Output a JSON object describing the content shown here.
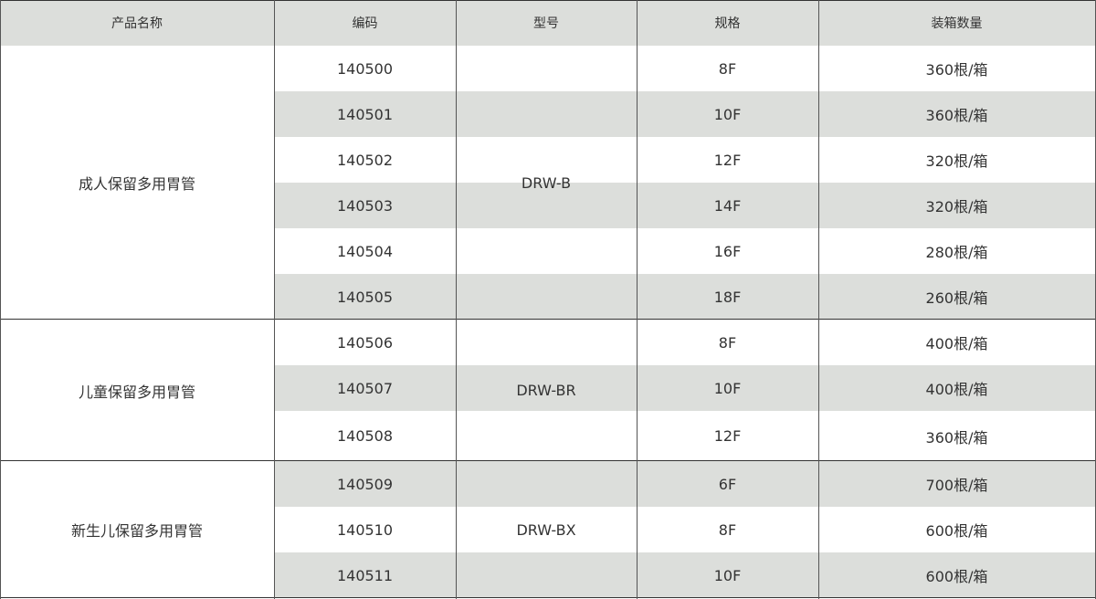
{
  "header": [
    "产品名称",
    "编码",
    "型号",
    "规格",
    "装箱数量"
  ],
  "groups": [
    {
      "product": "成人保留多用胃管",
      "model": "DRW-B",
      "rows": [
        {
          "code": "140500",
          "spec": "8F",
          "qty": "360根/箱"
        },
        {
          "code": "140501",
          "spec": "10F",
          "qty": "360根/箱"
        },
        {
          "code": "140502",
          "spec": "12F",
          "qty": "320根/箱"
        },
        {
          "code": "140503",
          "spec": "14F",
          "qty": "320根/箱"
        },
        {
          "code": "140504",
          "spec": "16F",
          "qty": "280根/箱"
        },
        {
          "code": "140505",
          "spec": "18F",
          "qty": "260根/箱"
        }
      ]
    },
    {
      "product": "儿童保留多用胃管",
      "model": "DRW-BR",
      "rows": [
        {
          "code": "140506",
          "spec": "8F",
          "qty": "400根/箱"
        },
        {
          "code": "140507",
          "spec": "10F",
          "qty": "400根/箱"
        },
        {
          "code": "140508",
          "spec": "12F",
          "qty": "360根/箱"
        }
      ]
    },
    {
      "product": "新生儿保留多用胃管",
      "model": "DRW-BX",
      "rows": [
        {
          "code": "140509",
          "spec": "6F",
          "qty": "700根/箱"
        },
        {
          "code": "140510",
          "spec": "8F",
          "qty": "600根/箱"
        },
        {
          "code": "140511",
          "spec": "10F",
          "qty": "600根/箱"
        }
      ]
    }
  ],
  "colors": {
    "stripe": "#dcdedb",
    "border": "#333333",
    "text": "#333333"
  }
}
